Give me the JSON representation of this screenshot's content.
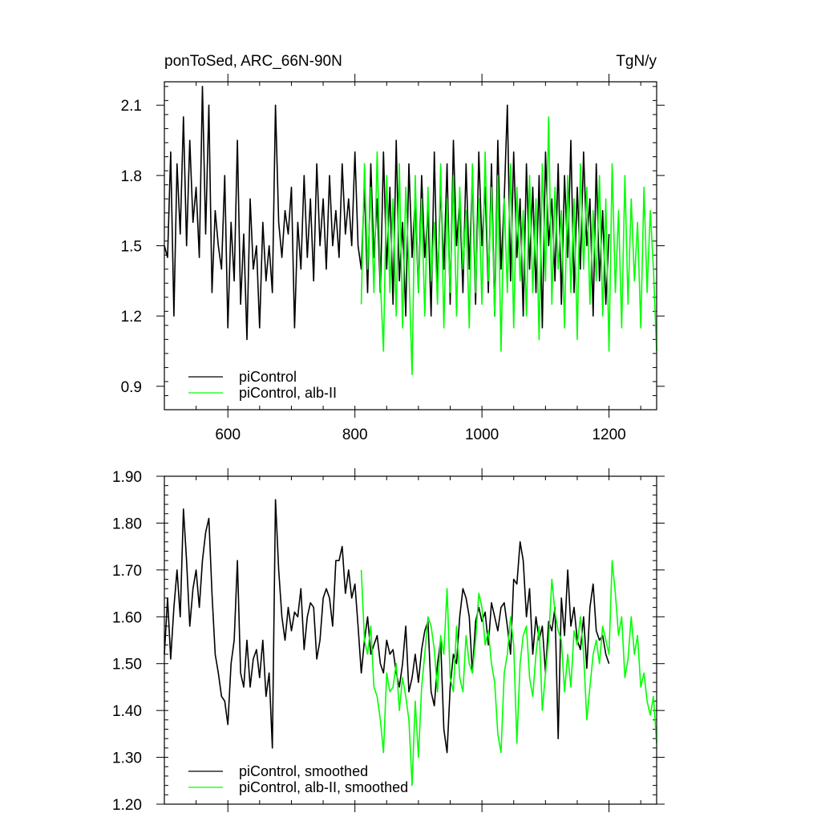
{
  "chart_data": [
    {
      "type": "line",
      "title_left": "ponToSed, ARC_66N-90N",
      "title_right": "TgN/y",
      "xlim": [
        500,
        1275
      ],
      "ylim": [
        0.8,
        2.2
      ],
      "xticks": [
        600,
        800,
        1000,
        1200
      ],
      "xtick_labels": [
        "600",
        "800",
        "1000",
        "1200"
      ],
      "yticks": [
        0.9,
        1.2,
        1.5,
        1.8,
        2.1
      ],
      "ytick_labels": [
        "0.9",
        "1.2",
        "1.5",
        "1.8",
        "2.1"
      ],
      "legend_position": "bottom-left",
      "grid": false,
      "colors": {
        "piControl": "#000000",
        "alb": "#00ff00"
      },
      "series": [
        {
          "name": "piControl",
          "color": "#000000",
          "x": [
            500,
            505,
            510,
            515,
            520,
            525,
            530,
            535,
            540,
            545,
            550,
            555,
            560,
            565,
            570,
            575,
            580,
            585,
            590,
            595,
            600,
            605,
            610,
            615,
            620,
            625,
            630,
            635,
            640,
            645,
            650,
            655,
            660,
            665,
            670,
            675,
            680,
            685,
            690,
            695,
            700,
            705,
            710,
            715,
            720,
            725,
            730,
            735,
            740,
            745,
            750,
            755,
            760,
            765,
            770,
            775,
            780,
            785,
            790,
            795,
            800,
            805,
            810,
            815,
            820,
            825,
            830,
            835,
            840,
            845,
            850,
            855,
            860,
            865,
            870,
            875,
            880,
            885,
            890,
            895,
            900,
            905,
            910,
            915,
            920,
            925,
            930,
            935,
            940,
            945,
            950,
            955,
            960,
            965,
            970,
            975,
            980,
            985,
            990,
            995,
            1000,
            1005,
            1010,
            1015,
            1020,
            1025,
            1030,
            1035,
            1040,
            1045,
            1050,
            1055,
            1060,
            1065,
            1070,
            1075,
            1080,
            1085,
            1090,
            1095,
            1100,
            1105,
            1110,
            1115,
            1120,
            1125,
            1130,
            1135,
            1140,
            1145,
            1150,
            1155,
            1160,
            1165,
            1170,
            1175,
            1180,
            1185,
            1190,
            1195,
            1200
          ],
          "y": [
            1.5,
            1.45,
            1.9,
            1.2,
            1.85,
            1.55,
            2.05,
            1.5,
            1.95,
            1.6,
            1.75,
            1.45,
            2.18,
            1.55,
            2.1,
            1.3,
            1.65,
            1.5,
            1.4,
            1.8,
            1.15,
            1.6,
            1.35,
            1.95,
            1.25,
            1.55,
            1.1,
            1.7,
            1.4,
            1.5,
            1.15,
            1.6,
            1.35,
            1.5,
            1.3,
            2.1,
            1.6,
            1.45,
            1.65,
            1.55,
            1.75,
            1.15,
            1.6,
            1.4,
            1.8,
            1.45,
            1.7,
            1.35,
            1.85,
            1.5,
            1.7,
            1.4,
            1.8,
            1.5,
            1.65,
            1.45,
            1.85,
            1.55,
            1.7,
            1.5,
            1.9,
            1.5,
            1.4,
            1.75,
            1.3,
            1.85,
            1.45,
            1.7,
            1.3,
            1.9,
            1.4,
            1.75,
            1.25,
            1.95,
            1.35,
            1.6,
            1.2,
            1.85,
            1.45,
            1.7,
            1.3,
            1.8,
            1.45,
            1.65,
            1.2,
            1.9,
            1.3,
            1.75,
            1.4,
            1.85,
            1.25,
            1.95,
            1.5,
            1.7,
            1.3,
            1.85,
            1.4,
            1.8,
            1.25,
            1.9,
            1.5,
            1.75,
            1.3,
            1.85,
            1.2,
            1.95,
            1.4,
            1.7,
            2.1,
            1.35,
            1.9,
            1.45,
            1.7,
            1.2,
            1.85,
            1.4,
            1.75,
            1.3,
            1.8,
            1.15,
            1.9,
            1.5,
            1.7,
            1.35,
            1.85,
            1.25,
            1.8,
            1.45,
            1.95,
            1.3,
            1.75,
            1.4,
            1.9,
            1.5,
            1.7,
            1.2,
            1.85,
            1.35,
            1.65,
            1.25,
            1.55
          ]
        },
        {
          "name": "piControl, alb-II",
          "color": "#00ff00",
          "x": [
            810,
            815,
            820,
            825,
            830,
            835,
            840,
            845,
            850,
            855,
            860,
            865,
            870,
            875,
            880,
            885,
            890,
            895,
            900,
            905,
            910,
            915,
            920,
            925,
            930,
            935,
            940,
            945,
            950,
            955,
            960,
            965,
            970,
            975,
            980,
            985,
            990,
            995,
            1000,
            1005,
            1010,
            1015,
            1020,
            1025,
            1030,
            1035,
            1040,
            1045,
            1050,
            1055,
            1060,
            1065,
            1070,
            1075,
            1080,
            1085,
            1090,
            1095,
            1100,
            1105,
            1110,
            1115,
            1120,
            1125,
            1130,
            1135,
            1140,
            1145,
            1150,
            1155,
            1160,
            1165,
            1170,
            1175,
            1180,
            1185,
            1190,
            1195,
            1200,
            1205,
            1210,
            1215,
            1220,
            1225,
            1230,
            1235,
            1240,
            1245,
            1250,
            1255,
            1260,
            1265,
            1270,
            1275
          ],
          "y": [
            1.25,
            1.85,
            1.4,
            1.75,
            1.3,
            1.9,
            1.35,
            1.05,
            1.8,
            1.3,
            1.7,
            1.2,
            1.85,
            1.15,
            1.75,
            1.4,
            0.95,
            1.8,
            1.3,
            1.7,
            1.2,
            1.75,
            1.35,
            1.6,
            1.25,
            1.85,
            1.15,
            1.7,
            1.3,
            1.8,
            1.2,
            1.75,
            1.4,
            1.65,
            1.15,
            1.85,
            1.3,
            1.7,
            1.25,
            1.9,
            1.35,
            1.75,
            1.2,
            1.8,
            1.05,
            1.7,
            1.3,
            1.85,
            1.15,
            1.75,
            1.35,
            1.65,
            1.2,
            1.8,
            1.3,
            1.7,
            1.1,
            1.85,
            1.35,
            2.05,
            1.25,
            1.75,
            1.4,
            1.65,
            1.15,
            1.8,
            1.3,
            1.7,
            1.1,
            1.85,
            1.4,
            1.75,
            1.25,
            1.65,
            1.35,
            1.8,
            1.2,
            1.7,
            1.05,
            1.85,
            1.3,
            1.65,
            1.15,
            1.8,
            1.25,
            1.7,
            1.35,
            1.6,
            1.15,
            1.75,
            1.3,
            1.65,
            1.4,
            1.05
          ]
        }
      ]
    },
    {
      "type": "line",
      "xlim": [
        500,
        1275
      ],
      "ylim": [
        1.2,
        1.9
      ],
      "xticks": [
        600,
        800,
        1000,
        1200
      ],
      "yticks": [
        1.2,
        1.3,
        1.4,
        1.5,
        1.6,
        1.7,
        1.8,
        1.9
      ],
      "ytick_labels": [
        "1.20",
        "1.30",
        "1.40",
        "1.50",
        "1.60",
        "1.70",
        "1.80",
        "1.90"
      ],
      "legend_position": "bottom-left",
      "grid": false,
      "series": [
        {
          "name": "piControl, smoothed",
          "color": "#000000",
          "x": [
            500,
            505,
            510,
            515,
            520,
            525,
            530,
            535,
            540,
            545,
            550,
            555,
            560,
            565,
            570,
            575,
            580,
            585,
            590,
            595,
            600,
            605,
            610,
            615,
            620,
            625,
            630,
            635,
            640,
            645,
            650,
            655,
            660,
            665,
            670,
            675,
            680,
            685,
            690,
            695,
            700,
            705,
            710,
            715,
            720,
            725,
            730,
            735,
            740,
            745,
            750,
            755,
            760,
            765,
            770,
            775,
            780,
            785,
            790,
            795,
            800,
            805,
            810,
            815,
            820,
            825,
            830,
            835,
            840,
            845,
            850,
            855,
            860,
            865,
            870,
            875,
            880,
            885,
            890,
            895,
            900,
            905,
            910,
            915,
            920,
            925,
            930,
            935,
            940,
            945,
            950,
            955,
            960,
            965,
            970,
            975,
            980,
            985,
            990,
            995,
            1000,
            1005,
            1010,
            1015,
            1020,
            1025,
            1030,
            1035,
            1040,
            1045,
            1050,
            1055,
            1060,
            1065,
            1070,
            1075,
            1080,
            1085,
            1090,
            1095,
            1100,
            1105,
            1110,
            1115,
            1120,
            1125,
            1130,
            1135,
            1140,
            1145,
            1150,
            1155,
            1160,
            1165,
            1170,
            1175,
            1180,
            1185,
            1190,
            1195,
            1200
          ],
          "y": [
            1.52,
            1.64,
            1.51,
            1.62,
            1.7,
            1.6,
            1.83,
            1.72,
            1.58,
            1.66,
            1.7,
            1.62,
            1.72,
            1.78,
            1.81,
            1.65,
            1.52,
            1.48,
            1.43,
            1.42,
            1.37,
            1.5,
            1.55,
            1.72,
            1.48,
            1.45,
            1.55,
            1.45,
            1.51,
            1.53,
            1.47,
            1.55,
            1.43,
            1.48,
            1.32,
            1.85,
            1.7,
            1.6,
            1.55,
            1.62,
            1.57,
            1.61,
            1.6,
            1.66,
            1.53,
            1.6,
            1.63,
            1.62,
            1.51,
            1.55,
            1.64,
            1.66,
            1.64,
            1.58,
            1.72,
            1.72,
            1.75,
            1.65,
            1.7,
            1.64,
            1.67,
            1.58,
            1.48,
            1.55,
            1.6,
            1.52,
            1.54,
            1.56,
            1.5,
            1.48,
            1.55,
            1.52,
            1.53,
            1.48,
            1.45,
            1.5,
            1.58,
            1.44,
            1.47,
            1.52,
            1.46,
            1.53,
            1.57,
            1.59,
            1.44,
            1.41,
            1.5,
            1.55,
            1.36,
            1.31,
            1.45,
            1.52,
            1.5,
            1.6,
            1.66,
            1.64,
            1.6,
            1.48,
            1.59,
            1.62,
            1.59,
            1.61,
            1.54,
            1.63,
            1.6,
            1.57,
            1.62,
            1.63,
            1.58,
            1.52,
            1.68,
            1.67,
            1.76,
            1.72,
            1.6,
            1.66,
            1.52,
            1.6,
            1.55,
            1.58,
            1.48,
            1.59,
            1.57,
            1.62,
            1.34,
            1.64,
            1.56,
            1.7,
            1.58,
            1.62,
            1.55,
            1.53,
            1.6,
            1.49,
            1.62,
            1.67,
            1.57,
            1.55,
            1.56,
            1.52,
            1.5
          ]
        },
        {
          "name": "piControl, alb-II, smoothed",
          "color": "#00ff00",
          "x": [
            810,
            815,
            820,
            825,
            830,
            835,
            840,
            845,
            850,
            855,
            860,
            865,
            870,
            875,
            880,
            885,
            890,
            895,
            900,
            905,
            910,
            915,
            920,
            925,
            930,
            935,
            940,
            945,
            950,
            955,
            960,
            965,
            970,
            975,
            980,
            985,
            990,
            995,
            1000,
            1005,
            1010,
            1015,
            1020,
            1025,
            1030,
            1035,
            1040,
            1045,
            1050,
            1055,
            1060,
            1065,
            1070,
            1075,
            1080,
            1085,
            1090,
            1095,
            1100,
            1105,
            1110,
            1115,
            1120,
            1125,
            1130,
            1135,
            1140,
            1145,
            1150,
            1155,
            1160,
            1165,
            1170,
            1175,
            1180,
            1185,
            1190,
            1195,
            1200,
            1205,
            1210,
            1215,
            1220,
            1225,
            1230,
            1235,
            1240,
            1245,
            1250,
            1255,
            1260,
            1265,
            1270,
            1275
          ],
          "y": [
            1.7,
            1.55,
            1.52,
            1.58,
            1.45,
            1.43,
            1.38,
            1.31,
            1.48,
            1.44,
            1.45,
            1.5,
            1.4,
            1.47,
            1.43,
            1.38,
            1.24,
            1.42,
            1.3,
            1.45,
            1.52,
            1.6,
            1.58,
            1.53,
            1.44,
            1.56,
            1.52,
            1.66,
            1.47,
            1.44,
            1.58,
            1.47,
            1.44,
            1.56,
            1.5,
            1.48,
            1.55,
            1.65,
            1.62,
            1.54,
            1.57,
            1.5,
            1.46,
            1.35,
            1.31,
            1.48,
            1.52,
            1.6,
            1.54,
            1.33,
            1.5,
            1.56,
            1.58,
            1.47,
            1.43,
            1.52,
            1.58,
            1.4,
            1.48,
            1.55,
            1.68,
            1.61,
            1.57,
            1.55,
            1.44,
            1.52,
            1.45,
            1.57,
            1.54,
            1.6,
            1.52,
            1.38,
            1.45,
            1.52,
            1.55,
            1.5,
            1.58,
            1.55,
            1.52,
            1.72,
            1.65,
            1.56,
            1.6,
            1.47,
            1.51,
            1.6,
            1.52,
            1.56,
            1.45,
            1.48,
            1.42,
            1.39,
            1.43,
            1.33
          ]
        }
      ]
    }
  ]
}
